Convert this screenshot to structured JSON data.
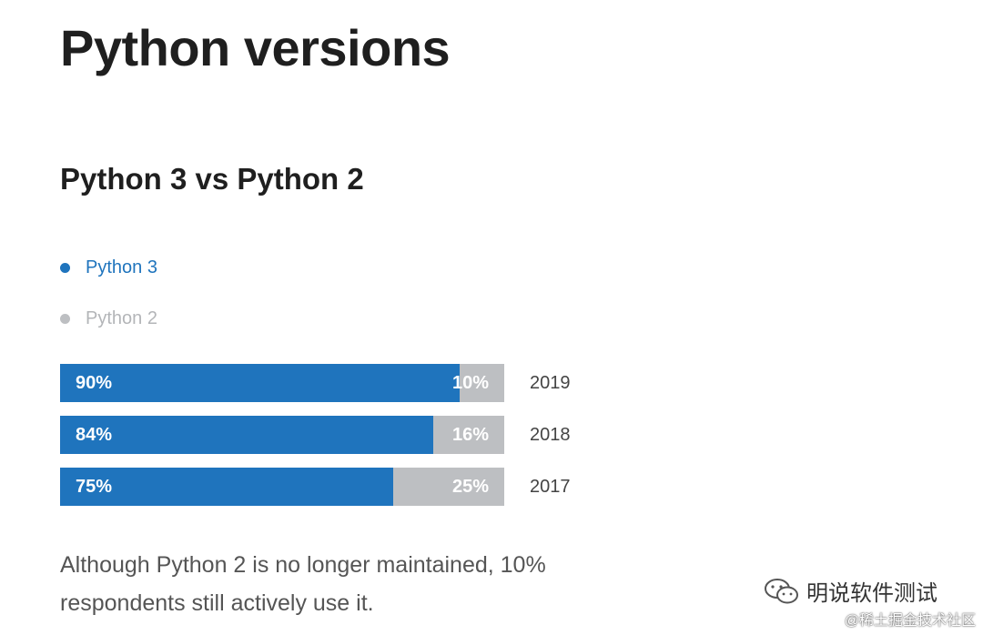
{
  "page": {
    "title": "Python versions",
    "section_title": "Python 3 vs Python 2",
    "note": "Although Python 2 is no longer maintained, 10% respondents still actively use it."
  },
  "legend": [
    {
      "label": "Python 3",
      "color": "#1f74bd"
    },
    {
      "label": "Python 2",
      "color": "#bdbfc2"
    }
  ],
  "colors": {
    "python3": "#1f74bd",
    "python2": "#bdbfc2",
    "legend_python3_text": "#1f74bd",
    "legend_python2_text": "#b3b5b8"
  },
  "chart_data": {
    "type": "bar",
    "orientation": "horizontal",
    "stacked": true,
    "title": "Python 3 vs Python 2",
    "categories": [
      "2019",
      "2018",
      "2017"
    ],
    "series": [
      {
        "name": "Python 3",
        "values": [
          90,
          84,
          75
        ],
        "labels": [
          "90%",
          "84%",
          "75%"
        ]
      },
      {
        "name": "Python 2",
        "values": [
          10,
          16,
          25
        ],
        "labels": [
          "10%",
          "16%",
          "25%"
        ]
      }
    ],
    "xlim": [
      0,
      100
    ],
    "grid": false,
    "legend_position": "top-left"
  },
  "watermark": {
    "text": "明说软件测试",
    "icon": "wechat-icon",
    "corner_text": "@稀土掘金技术社区"
  }
}
